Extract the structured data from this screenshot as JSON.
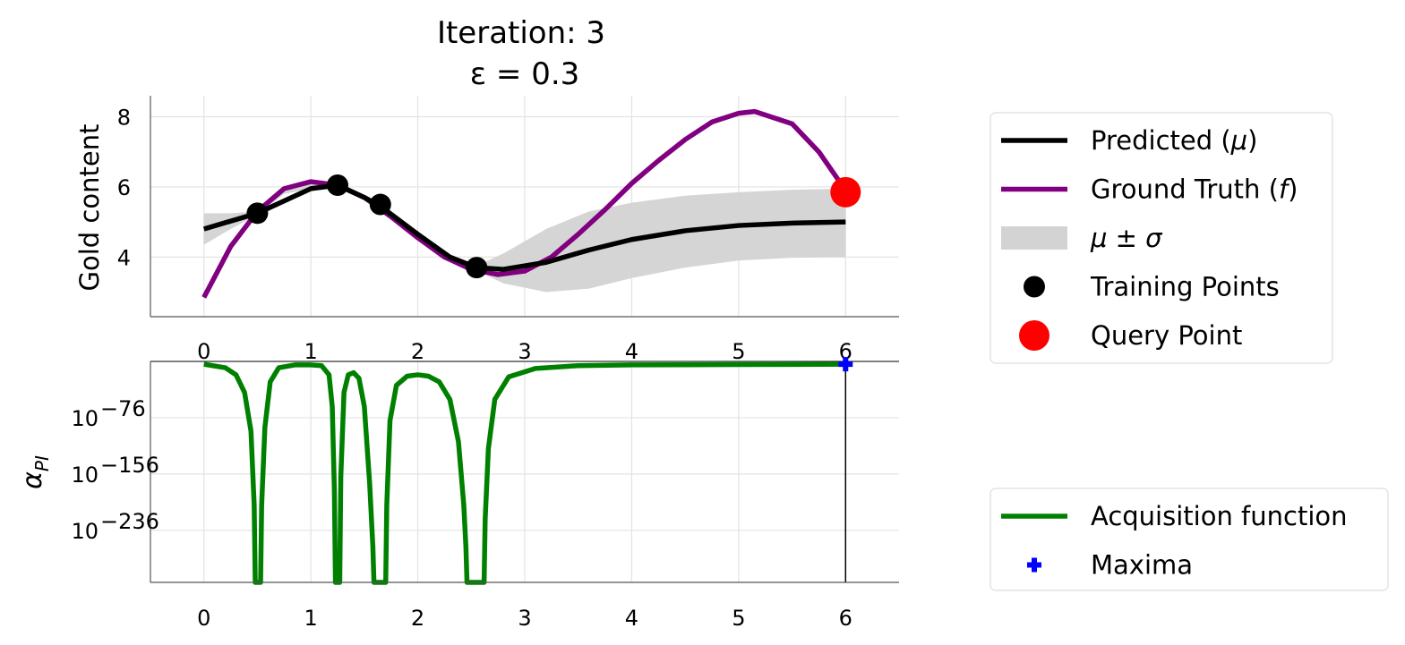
{
  "chart_data": [
    {
      "type": "line",
      "title": "Iteration: 3",
      "subtitle": "ε = 0.3",
      "xlabel": "",
      "ylabel": "Gold content",
      "xlim": [
        -0.5,
        6.5
      ],
      "ylim": [
        2.3,
        8.6
      ],
      "grid": true,
      "x_ticks": [
        "0",
        "1",
        "2",
        "3",
        "4",
        "5",
        "6"
      ],
      "y_ticks": [
        "4",
        "6",
        "8"
      ],
      "legend_position": "outside-right",
      "series": [
        {
          "name": "Predicted (μ)",
          "color": "#000000",
          "x": [
            0,
            0.5,
            1.0,
            1.25,
            1.5,
            1.65,
            2.0,
            2.3,
            2.55,
            2.8,
            3.2,
            3.6,
            4.0,
            4.5,
            5.0,
            5.5,
            6.0
          ],
          "y": [
            4.8,
            5.25,
            5.95,
            6.05,
            5.7,
            5.45,
            4.65,
            4.0,
            3.7,
            3.65,
            3.85,
            4.2,
            4.5,
            4.75,
            4.9,
            4.97,
            5.0
          ]
        },
        {
          "name": "Ground Truth (f)",
          "color": "#800080",
          "x": [
            0,
            0.25,
            0.5,
            0.75,
            1.0,
            1.25,
            1.5,
            1.75,
            2.0,
            2.25,
            2.5,
            2.75,
            3.0,
            3.25,
            3.5,
            3.75,
            4.0,
            4.25,
            4.5,
            4.75,
            5.0,
            5.15,
            5.5,
            5.75,
            6.0
          ],
          "y": [
            2.85,
            4.3,
            5.3,
            5.95,
            6.15,
            6.05,
            5.7,
            5.15,
            4.55,
            4.0,
            3.65,
            3.5,
            3.6,
            4.0,
            4.65,
            5.35,
            6.1,
            6.75,
            7.35,
            7.85,
            8.1,
            8.15,
            7.8,
            7.0,
            5.9
          ]
        }
      ],
      "uncertainty_band": {
        "name": "μ ± σ",
        "color": "#d3d3d3",
        "x": [
          0,
          0.25,
          0.5,
          0.75,
          1.0,
          1.25,
          1.5,
          1.65,
          2.0,
          2.3,
          2.55,
          2.8,
          3.2,
          3.6,
          4.0,
          4.5,
          5.0,
          5.5,
          6.0
        ],
        "upper": [
          5.25,
          5.25,
          5.3,
          5.95,
          6.12,
          6.08,
          5.74,
          5.48,
          4.7,
          4.05,
          3.75,
          4.1,
          4.8,
          5.3,
          5.55,
          5.75,
          5.85,
          5.92,
          5.95
        ],
        "lower": [
          4.35,
          4.8,
          5.2,
          5.8,
          5.95,
          6.02,
          5.66,
          5.42,
          4.55,
          3.9,
          3.62,
          3.25,
          3.0,
          3.1,
          3.4,
          3.7,
          3.9,
          3.98,
          4.0
        ]
      },
      "training_points": {
        "name": "Training Points",
        "color": "#000000",
        "x": [
          0.5,
          1.25,
          1.65,
          2.55
        ],
        "y": [
          5.25,
          6.05,
          5.5,
          3.7
        ]
      },
      "query_point": {
        "name": "Query Point",
        "color": "#ff0000",
        "x": [
          6.0
        ],
        "y": [
          5.85
        ]
      }
    },
    {
      "type": "line",
      "title": "",
      "xlabel": "",
      "ylabel": "αPI",
      "ylabel_main": "α",
      "ylabel_sub": "PI",
      "xlim": [
        -0.5,
        6.5
      ],
      "ylim_log10": [
        -310,
        4
      ],
      "grid": true,
      "x_ticks": [
        "0",
        "1",
        "2",
        "3",
        "4",
        "5",
        "6"
      ],
      "y_ticks": [
        {
          "base": "10",
          "exp": "−76",
          "value_log10": -76
        },
        {
          "base": "10",
          "exp": "−156",
          "value_log10": -156
        },
        {
          "base": "10",
          "exp": "−236",
          "value_log10": -236
        }
      ],
      "legend_position": "outside-right",
      "series": [
        {
          "name": "Acquisition function",
          "color": "#008000",
          "x": [
            0,
            0.2,
            0.3,
            0.38,
            0.44,
            0.47,
            0.48,
            0.53,
            0.54,
            0.57,
            0.62,
            0.7,
            0.85,
            1.0,
            1.1,
            1.17,
            1.2,
            1.22,
            1.23,
            1.27,
            1.28,
            1.31,
            1.35,
            1.4,
            1.45,
            1.5,
            1.55,
            1.58,
            1.59,
            1.7,
            1.71,
            1.74,
            1.8,
            1.9,
            2.0,
            2.1,
            2.2,
            2.3,
            2.38,
            2.43,
            2.45,
            2.46,
            2.62,
            2.63,
            2.66,
            2.72,
            2.85,
            3.1,
            3.5,
            4.0,
            5.0,
            6.0
          ],
          "log10_y": [
            0,
            -5,
            -15,
            -40,
            -95,
            -200,
            -310,
            -310,
            -200,
            -90,
            -25,
            -5,
            -1,
            -1,
            -2,
            -15,
            -60,
            -180,
            -310,
            -310,
            -160,
            -40,
            -15,
            -12,
            -20,
            -60,
            -170,
            -260,
            -310,
            -310,
            -200,
            -80,
            -30,
            -17,
            -15,
            -17,
            -25,
            -50,
            -110,
            -200,
            -260,
            -310,
            -310,
            -220,
            -120,
            -50,
            -18,
            -6,
            -2,
            -1,
            -0.5,
            0
          ]
        }
      ],
      "maxima": {
        "name": "Maxima",
        "color": "#0000ff",
        "x": [
          6.0
        ],
        "log10_y": [
          0
        ]
      }
    }
  ],
  "legends": {
    "top": [
      {
        "main": "Predicted (",
        "italic": "μ",
        "tail": ")"
      },
      {
        "main": "Ground Truth (",
        "italic": "f",
        "tail": ")"
      },
      {
        "main": "",
        "italic": "μ ± σ",
        "tail": ""
      },
      {
        "main": "Training Points",
        "italic": "",
        "tail": ""
      },
      {
        "main": "Query Point",
        "italic": "",
        "tail": ""
      }
    ],
    "bottom": [
      {
        "main": "Acquisition function",
        "italic": "",
        "tail": ""
      },
      {
        "main": "Maxima",
        "italic": "",
        "tail": ""
      }
    ]
  }
}
